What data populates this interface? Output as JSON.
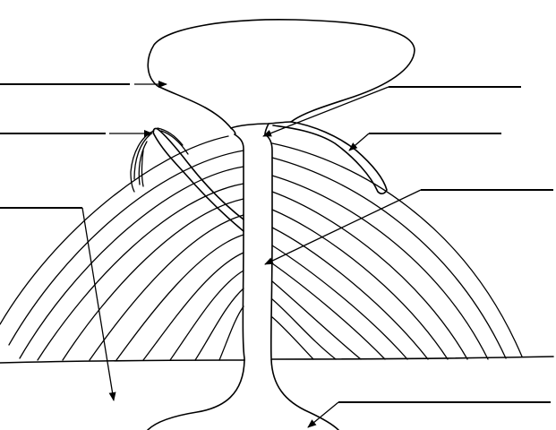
{
  "diagram": {
    "colors": {
      "ink": "#000000",
      "background": "#ffffff"
    },
    "labels": [
      {
        "id": "ash-cloud",
        "text": ""
      },
      {
        "id": "side-vent",
        "text": ""
      },
      {
        "id": "layers",
        "text": ""
      },
      {
        "id": "crater",
        "text": ""
      },
      {
        "id": "lava-flow",
        "text": ""
      },
      {
        "id": "conduit",
        "text": ""
      },
      {
        "id": "magma-chamber",
        "text": ""
      }
    ]
  }
}
